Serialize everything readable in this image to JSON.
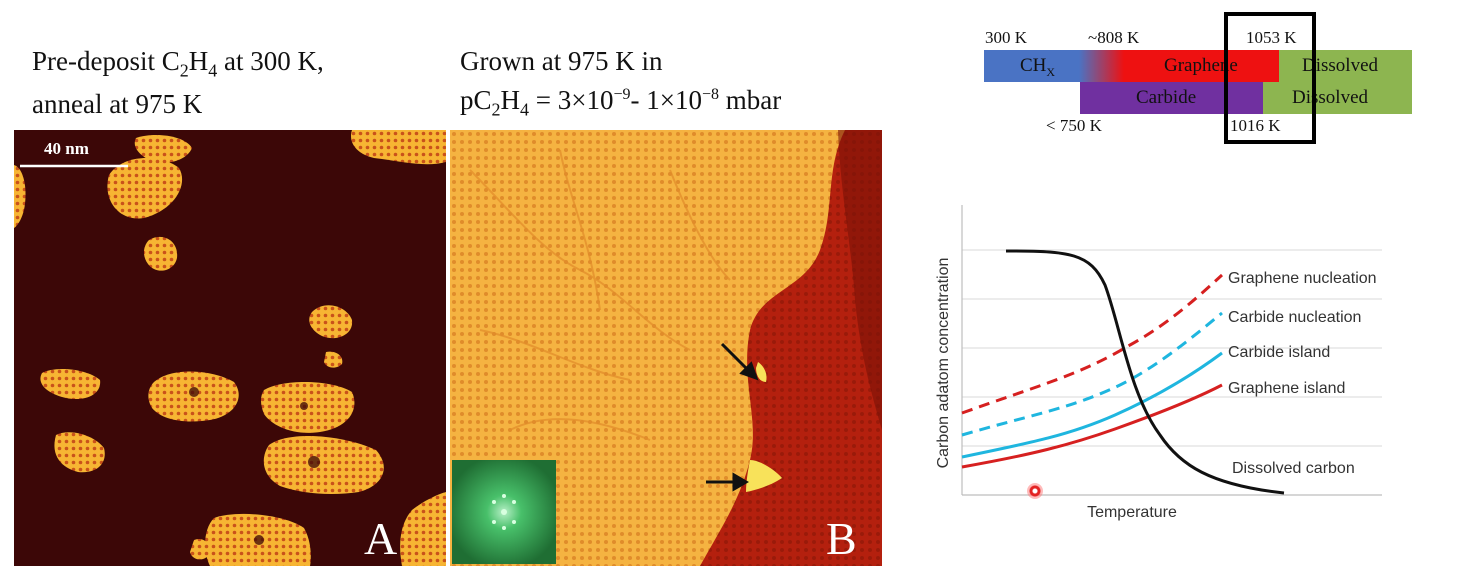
{
  "panel_a": {
    "caption_line1_pre": "Pre-deposit C",
    "caption_line1_sub1": "2",
    "caption_line1_mid": "H",
    "caption_line1_sub2": "4",
    "caption_line1_post": " at 300 K,",
    "caption_line2": "anneal at 975 K",
    "scalebar": "40 nm",
    "letter": "A"
  },
  "panel_b": {
    "caption_line1": "Grown at 975 K in",
    "caption_line2_pre": "pC",
    "caption_line2_sub1": "2",
    "caption_line2_mid": "H",
    "caption_line2_sub2": "4",
    "caption_line2_post1": " = 3×10",
    "caption_line2_sup1": "−9",
    "caption_line2_post2": "- 1×10",
    "caption_line2_sup2": "−8",
    "caption_line2_post3": " mbar",
    "letter": "B"
  },
  "phase_diagram": {
    "top_labels": [
      "300 K",
      "~808 K",
      "1053 K"
    ],
    "bottom_labels": [
      "< 750 K",
      "1016 K"
    ],
    "row1": {
      "chx_pre": "CH",
      "chx_sub": "X",
      "graphene": "Graphene",
      "dissolved": "Dissolved"
    },
    "row2": {
      "carbide": "Carbide",
      "dissolved": "Dissolved"
    },
    "colors": {
      "chx": "#4a73c4",
      "graphene": "#ee1111",
      "carbide": "#7030a0",
      "dissolved": "#8db550"
    }
  },
  "plot": {
    "ylabel": "Carbon adatom concentration",
    "xlabel": "Temperature",
    "curves": [
      {
        "name": "Graphene nucleation",
        "color": "#d62020",
        "dashed": true
      },
      {
        "name": "Carbide nucleation",
        "color": "#1fb6df",
        "dashed": true
      },
      {
        "name": "Carbide island",
        "color": "#1fb6df",
        "dashed": false
      },
      {
        "name": "Graphene island",
        "color": "#d62020",
        "dashed": false
      },
      {
        "name": "Dissolved carbon",
        "color": "#111111",
        "dashed": false
      }
    ]
  }
}
